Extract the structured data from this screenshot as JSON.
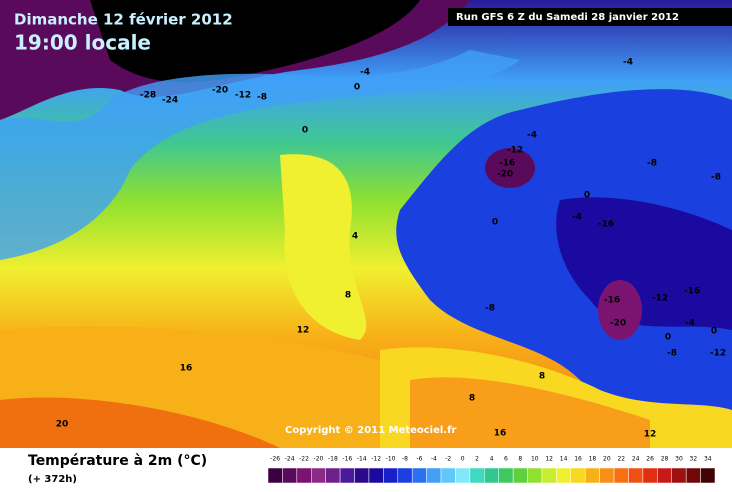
{
  "header": {
    "date": "Dimanche 12 février 2012",
    "time": "19:00 locale",
    "run": "Run GFS 6 Z du Samedi 28 janvier 2012"
  },
  "copyright": "Copyright © 2011 Meteociel.fr",
  "legend": {
    "title": "Température à 2m (°C)",
    "subtitle": "(+ 372h)",
    "ticks": [
      -26,
      -24,
      -22,
      -20,
      -18,
      -16,
      -14,
      -12,
      -10,
      -8,
      -6,
      -4,
      -2,
      0,
      2,
      4,
      6,
      8,
      10,
      12,
      14,
      16,
      18,
      20,
      22,
      24,
      26,
      28,
      30,
      32,
      34
    ],
    "colors": [
      "#3c0040",
      "#5a0a5a",
      "#7a1470",
      "#8c2a88",
      "#70208a",
      "#4a1a9a",
      "#2a0a8a",
      "#1a0aa0",
      "#1a20c8",
      "#1a40e0",
      "#2a70f0",
      "#40a0f8",
      "#60c8f8",
      "#80e8f8",
      "#40d8c0",
      "#30c890",
      "#40c860",
      "#60d040",
      "#90e030",
      "#c8ec30",
      "#f0f030",
      "#f8d820",
      "#f8b018",
      "#f89018",
      "#f87010",
      "#f05010",
      "#e03010",
      "#c81818",
      "#a01010",
      "#700808",
      "#400404"
    ]
  },
  "contour_labels": [
    "-28",
    "-28",
    "-24",
    "-20",
    "-12",
    "-8",
    "-4",
    "0",
    "-4",
    "0",
    "-4",
    "-12",
    "-16",
    "-20",
    "-8",
    "-8",
    "0",
    "-4",
    "-16",
    "0",
    "4",
    "8",
    "12",
    "-8",
    "-16",
    "-12",
    "-16",
    "-20",
    "-4",
    "0",
    "0",
    "-8",
    "-12",
    "16",
    "8",
    "8",
    "16",
    "12",
    "20"
  ]
}
